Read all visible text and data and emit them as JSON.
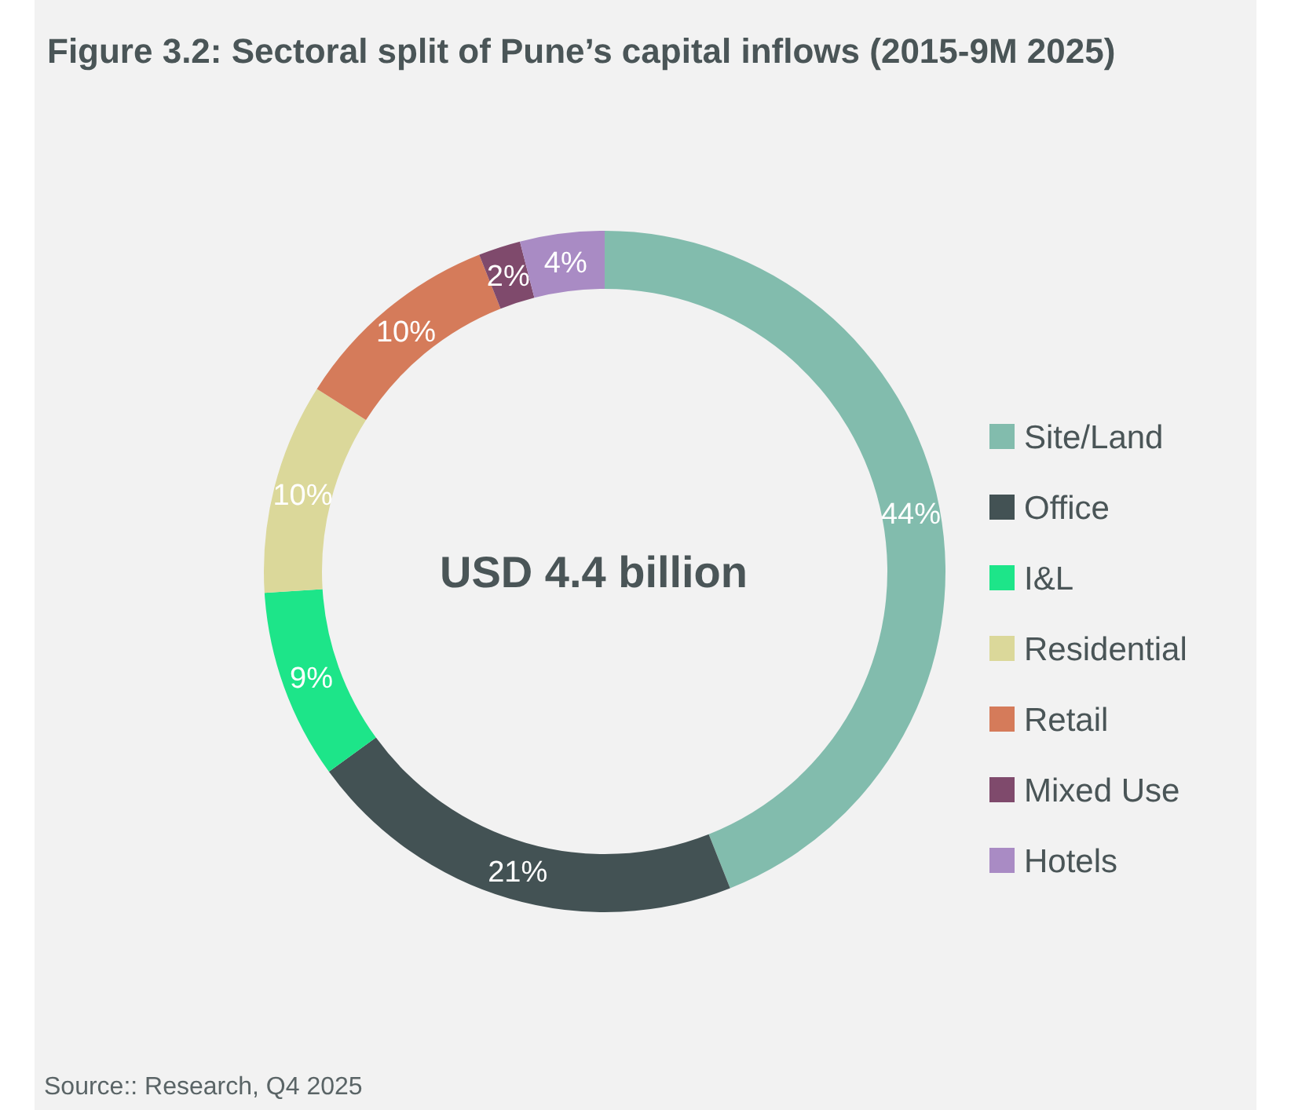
{
  "chart_data": {
    "type": "donut",
    "title": "Figure 3.2: Sectoral split of Pune’s capital inflows (2015-9M 2025)",
    "categories": [
      "Site/Land",
      "Office",
      "I&L",
      "Residential",
      "Retail",
      "Mixed Use",
      "Hotels"
    ],
    "values": [
      44,
      21,
      9,
      10,
      10,
      2,
      4
    ],
    "value_labels": [
      "44%",
      "21%",
      "9%",
      "10%",
      "10%",
      "2%",
      "4%"
    ],
    "colors": [
      "#82bcad",
      "#435254",
      "#1de589",
      "#dbd89a",
      "#d57b5a",
      "#7f4a6c",
      "#a98bc4"
    ],
    "legend": "right",
    "annotations": [
      "USD 4.4 billion",
      "Source:: Research, Q4 2025"
    ]
  }
}
